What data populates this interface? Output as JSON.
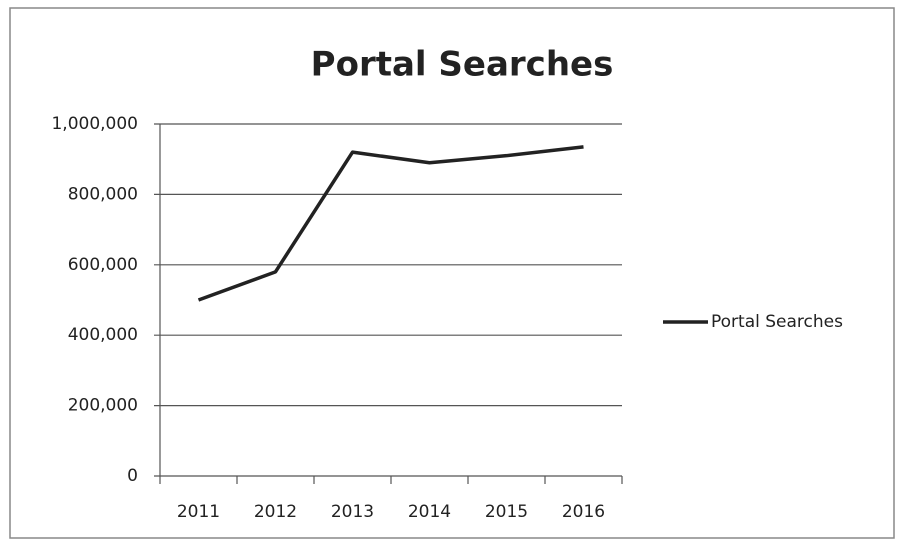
{
  "chart_data": {
    "type": "line",
    "title": "Portal Searches",
    "categories": [
      "2011",
      "2012",
      "2013",
      "2014",
      "2015",
      "2016"
    ],
    "series": [
      {
        "name": "Portal Searches",
        "color": "#222222",
        "values": [
          500000,
          580000,
          920000,
          890000,
          910000,
          935000
        ]
      }
    ],
    "ylim": [
      0,
      1000000
    ],
    "yticks": [
      0,
      {
        "value": 200000,
        "label": "200,000"
      },
      {
        "value": 400000,
        "label": "400,000"
      },
      {
        "value": 600000,
        "label": "600,000"
      },
      {
        "value": 800000,
        "label": "800,000"
      },
      {
        "value": 1000000,
        "label": "1,000,000"
      }
    ],
    "grid": true,
    "legend": "right"
  }
}
